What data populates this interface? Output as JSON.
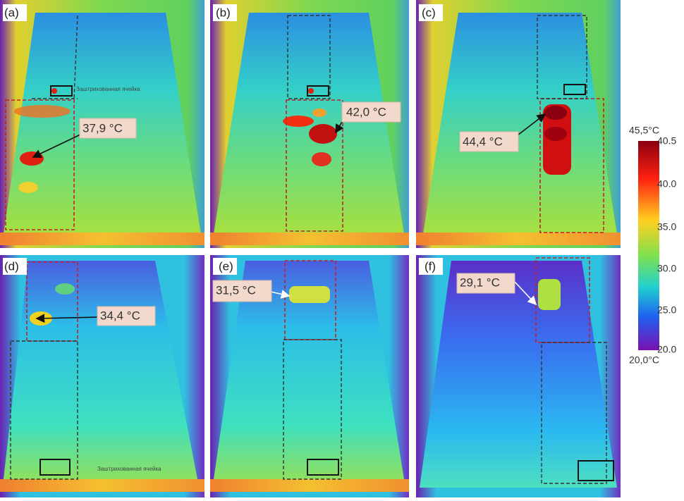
{
  "panels": [
    {
      "label": "(a)",
      "temperature": "37,9 °C",
      "cell_label": "Заштрихованная ячейка"
    },
    {
      "label": "(b)",
      "temperature": "42,0 °C"
    },
    {
      "label": "(c)",
      "temperature": "44,4 °C"
    },
    {
      "label": "(d)",
      "temperature": "34,4 °C",
      "cell_label": "Заштрихованная ячейка"
    },
    {
      "label": "(e)",
      "temperature": "31,5 °C"
    },
    {
      "label": "(f)",
      "temperature": "29,1 °C"
    }
  ],
  "colorbar": {
    "max_label": "45,5°C",
    "min_label": "20,0°C",
    "tick_labels": [
      "40.5",
      "40.0",
      "35.0",
      "30.0",
      "25.0",
      "20.0"
    ]
  }
}
